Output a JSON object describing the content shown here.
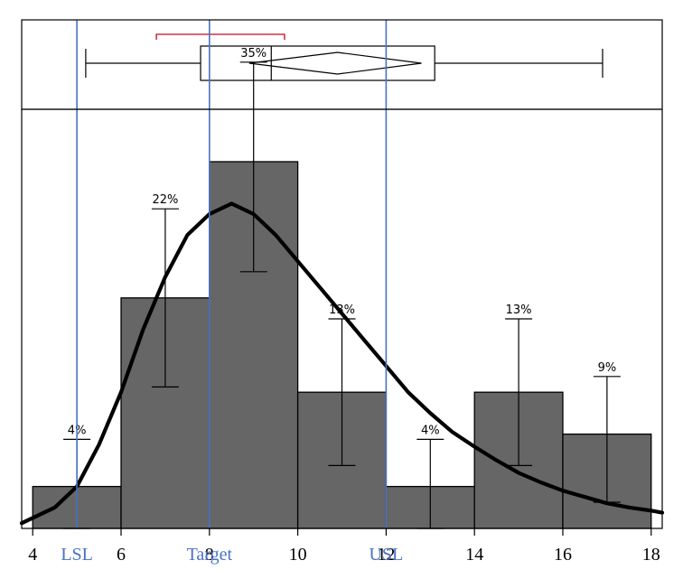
{
  "chart_data": {
    "type": "bar",
    "subtype": "histogram-with-boxplot",
    "title": "",
    "xlabel": "",
    "ylabel": "",
    "xlim": [
      3.75,
      18.25
    ],
    "ylim_percent": [
      0,
      40
    ],
    "x_ticks": [
      "4",
      "6",
      "8",
      "10",
      "12",
      "14",
      "16",
      "18"
    ],
    "histogram": {
      "bin_edges": [
        4,
        6,
        8,
        10,
        12,
        14,
        16,
        18
      ],
      "values_percent": [
        4,
        22,
        35,
        13,
        4,
        13,
        9
      ],
      "data_labels": [
        "4%",
        "22%",
        "35%",
        "13%",
        "4%",
        "13%",
        "9%"
      ],
      "error_low": [
        0,
        13.5,
        24.5,
        6,
        0,
        6,
        2.5
      ],
      "error_high": [
        8.5,
        30.5,
        44.5,
        20,
        8.5,
        20,
        14.5
      ],
      "color": "#666666"
    },
    "density_curve": {
      "x": [
        3.75,
        4.5,
        5,
        5.5,
        6,
        6.5,
        7,
        7.5,
        8,
        8.5,
        9,
        9.5,
        10,
        10.5,
        11,
        11.5,
        12,
        12.5,
        13,
        13.5,
        14,
        14.5,
        15,
        15.5,
        16,
        16.5,
        17,
        17.5,
        18,
        18.25
      ],
      "y_percent": [
        0.5,
        2,
        4,
        8,
        13,
        19,
        24,
        28,
        30,
        31,
        30,
        28,
        25.5,
        23,
        20.5,
        18,
        15.5,
        13,
        11,
        9.2,
        7.8,
        6.5,
        5.3,
        4.4,
        3.6,
        3,
        2.4,
        2,
        1.7,
        1.5
      ],
      "color": "#000000"
    },
    "spec_limits": [
      {
        "label": "LSL",
        "value": 5
      },
      {
        "label": "Target",
        "value": 8
      },
      {
        "label": "USL",
        "value": 12
      }
    ],
    "spec_color": "#4a72c4",
    "boxplot": {
      "whisker_low": 5.2,
      "q1": 7.8,
      "median": 9.4,
      "q3": 13.1,
      "whisker_high": 16.9,
      "mean_diamond": [
        8.9,
        10.9,
        12.8
      ],
      "shortest_half_bracket": [
        6.8,
        9.7
      ],
      "bracket_color": "#cc3344"
    }
  }
}
